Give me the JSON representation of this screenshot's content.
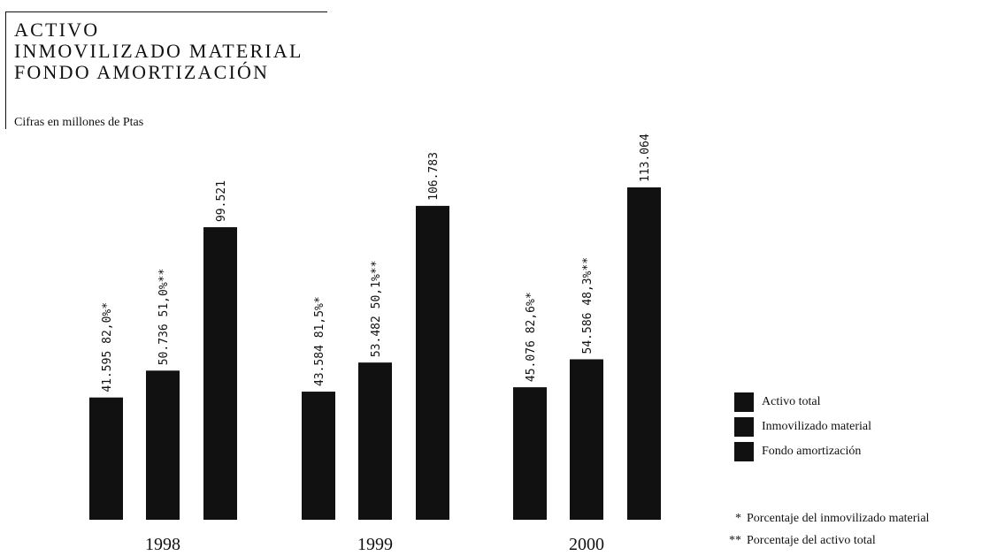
{
  "header": {
    "title_lines": [
      "ACTIVO",
      "INMOVILIZADO MATERIAL",
      "FONDO AMORTIZACIÓN"
    ],
    "subtitle": "Cifras en millones de Ptas"
  },
  "legend": {
    "items": [
      {
        "label": "Activo total",
        "color": "#111111"
      },
      {
        "label": "Inmovilizado material",
        "color": "#111111"
      },
      {
        "label": "Fondo amortización",
        "color": "#111111"
      }
    ]
  },
  "notes": [
    {
      "mark": "*",
      "text": "Porcentaje del inmovilizado material"
    },
    {
      "mark": "**",
      "text": "Porcentaje del activo total"
    }
  ],
  "chart_data": {
    "type": "bar",
    "title": "ACTIVO INMOVILIZADO MATERIAL FONDO AMORTIZACIÓN",
    "categories": [
      "1998",
      "1999",
      "2000"
    ],
    "series": [
      {
        "name": "Activo total",
        "values": [
          41595,
          43584,
          45076
        ],
        "labels": [
          "41.595 82,0%*",
          "43.584 81,5%*",
          "45.076 82,6%*"
        ]
      },
      {
        "name": "Inmovilizado material",
        "values": [
          50736,
          53482,
          54586
        ],
        "labels": [
          "50.736 51,0%**",
          "53.482 50,1%**",
          "54.586 48,3%**"
        ]
      },
      {
        "name": "Fondo amortización",
        "values": [
          99521,
          106783,
          113064
        ],
        "labels": [
          "99.521",
          "106.783",
          "113.064"
        ]
      }
    ],
    "ylim": [
      0,
      113064
    ],
    "grid": false,
    "legend_position": "right"
  }
}
